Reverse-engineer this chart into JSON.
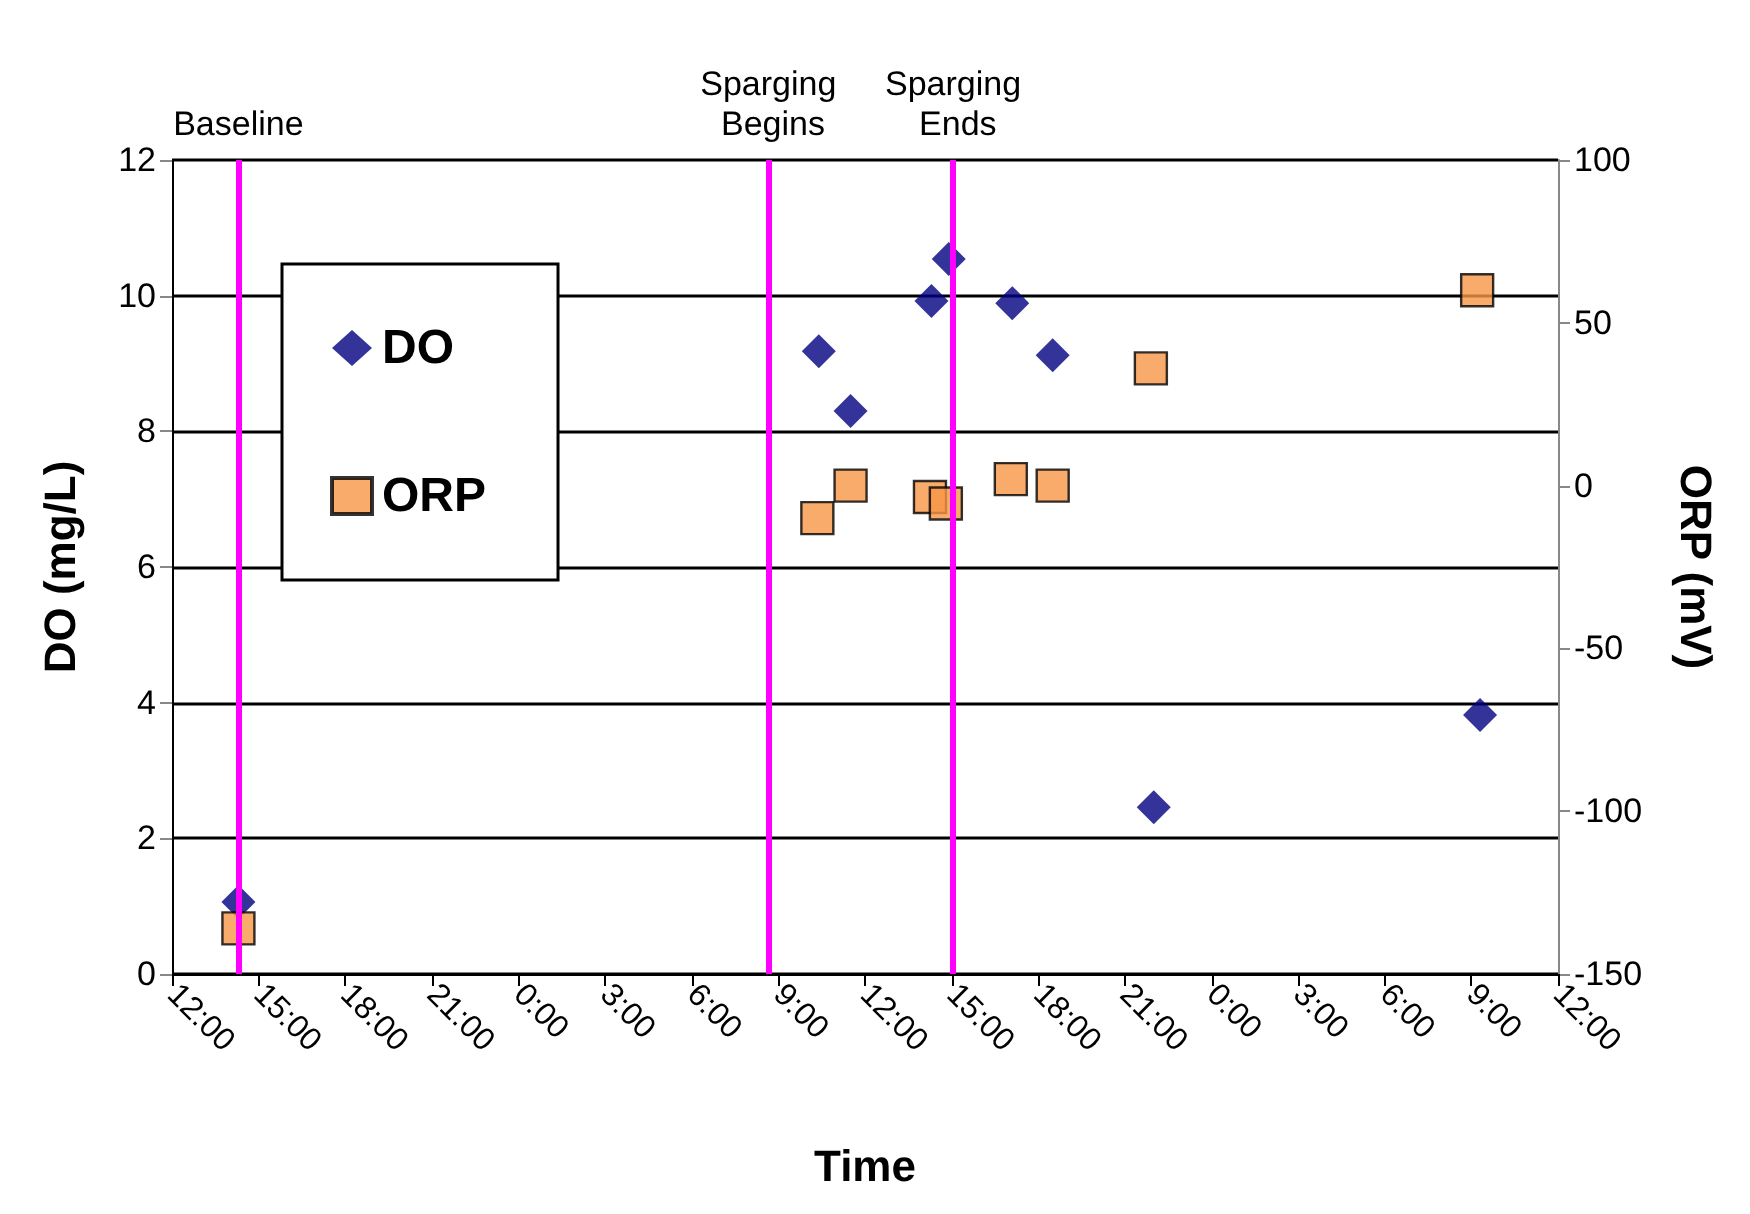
{
  "chart_data": {
    "type": "scatter",
    "xlabel": "Time",
    "ylabel": "DO (mg/L)",
    "y2label": "ORP (mV)",
    "xlim": [
      "--01-01T12:00",
      "--01-03T12:00"
    ],
    "xticks": [
      {
        "value": "--01-01T12:00",
        "label": "12:00"
      },
      {
        "value": "--01-01T15:00",
        "label": "15:00"
      },
      {
        "value": "--01-01T18:00",
        "label": "18:00"
      },
      {
        "value": "--01-01T21:00",
        "label": "21:00"
      },
      {
        "value": "--01-02T00:00",
        "label": "0:00"
      },
      {
        "value": "--01-02T03:00",
        "label": "3:00"
      },
      {
        "value": "--01-02T06:00",
        "label": "6:00"
      },
      {
        "value": "--01-02T09:00",
        "label": "9:00"
      },
      {
        "value": "--01-02T12:00",
        "label": "12:00"
      },
      {
        "value": "--01-02T15:00",
        "label": "15:00"
      },
      {
        "value": "--01-02T18:00",
        "label": "18:00"
      },
      {
        "value": "--01-02T21:00",
        "label": "21:00"
      },
      {
        "value": "--01-03T00:00",
        "label": "0:00"
      },
      {
        "value": "--01-03T03:00",
        "label": "3:00"
      },
      {
        "value": "--01-03T06:00",
        "label": "6:00"
      },
      {
        "value": "--01-03T09:00",
        "label": "9:00"
      },
      {
        "value": "--01-03T12:00",
        "label": "12:00"
      }
    ],
    "ylim": [
      0,
      12
    ],
    "yticks": [
      0,
      2,
      4,
      6,
      8,
      10,
      12
    ],
    "y2lim": [
      -150,
      100
    ],
    "y2ticks": [
      -150,
      -100,
      -50,
      0,
      50,
      100
    ],
    "grid": "y",
    "legend": "top left",
    "series": [
      {
        "name": "DO",
        "color": "#000080",
        "marker": "diamond",
        "x": [
          "--01-01T14:18",
          "--01-02T10:24",
          "--01-02T11:30",
          "--01-02T14:18",
          "--01-02T14:54",
          "--01-02T17:06",
          "--01-02T18:30",
          "--01-02T22:00",
          "--01-03T09:18"
        ],
        "values": [
          1.06,
          9.18,
          8.3,
          9.92,
          10.54,
          9.89,
          9.12,
          2.46,
          3.82
        ]
      },
      {
        "name": "ORP",
        "color": "#f79646",
        "marker": "square",
        "axis": "y2",
        "x": [
          "--01-01T14:18",
          "--01-02T10:21",
          "--01-02T11:30",
          "--01-02T14:15",
          "--01-02T14:48",
          "--01-02T17:03",
          "--01-02T18:30",
          "--01-02T21:54",
          "--01-03T09:12"
        ],
        "values": [
          -136,
          -10,
          0,
          -3.5,
          -5.5,
          2,
          0,
          36,
          60
        ]
      }
    ],
    "ref_lines": [
      {
        "axis": "x",
        "value": "--01-01T14:18",
        "label": "Baseline",
        "color": "#ff00ff"
      },
      {
        "axis": "x",
        "value": "--01-02T08:39",
        "label": "Sparging Begins",
        "color": "#ff00ff"
      },
      {
        "axis": "x",
        "value": "--01-02T15:03",
        "label": "Sparging Ends",
        "color": "#ff00ff"
      }
    ]
  }
}
